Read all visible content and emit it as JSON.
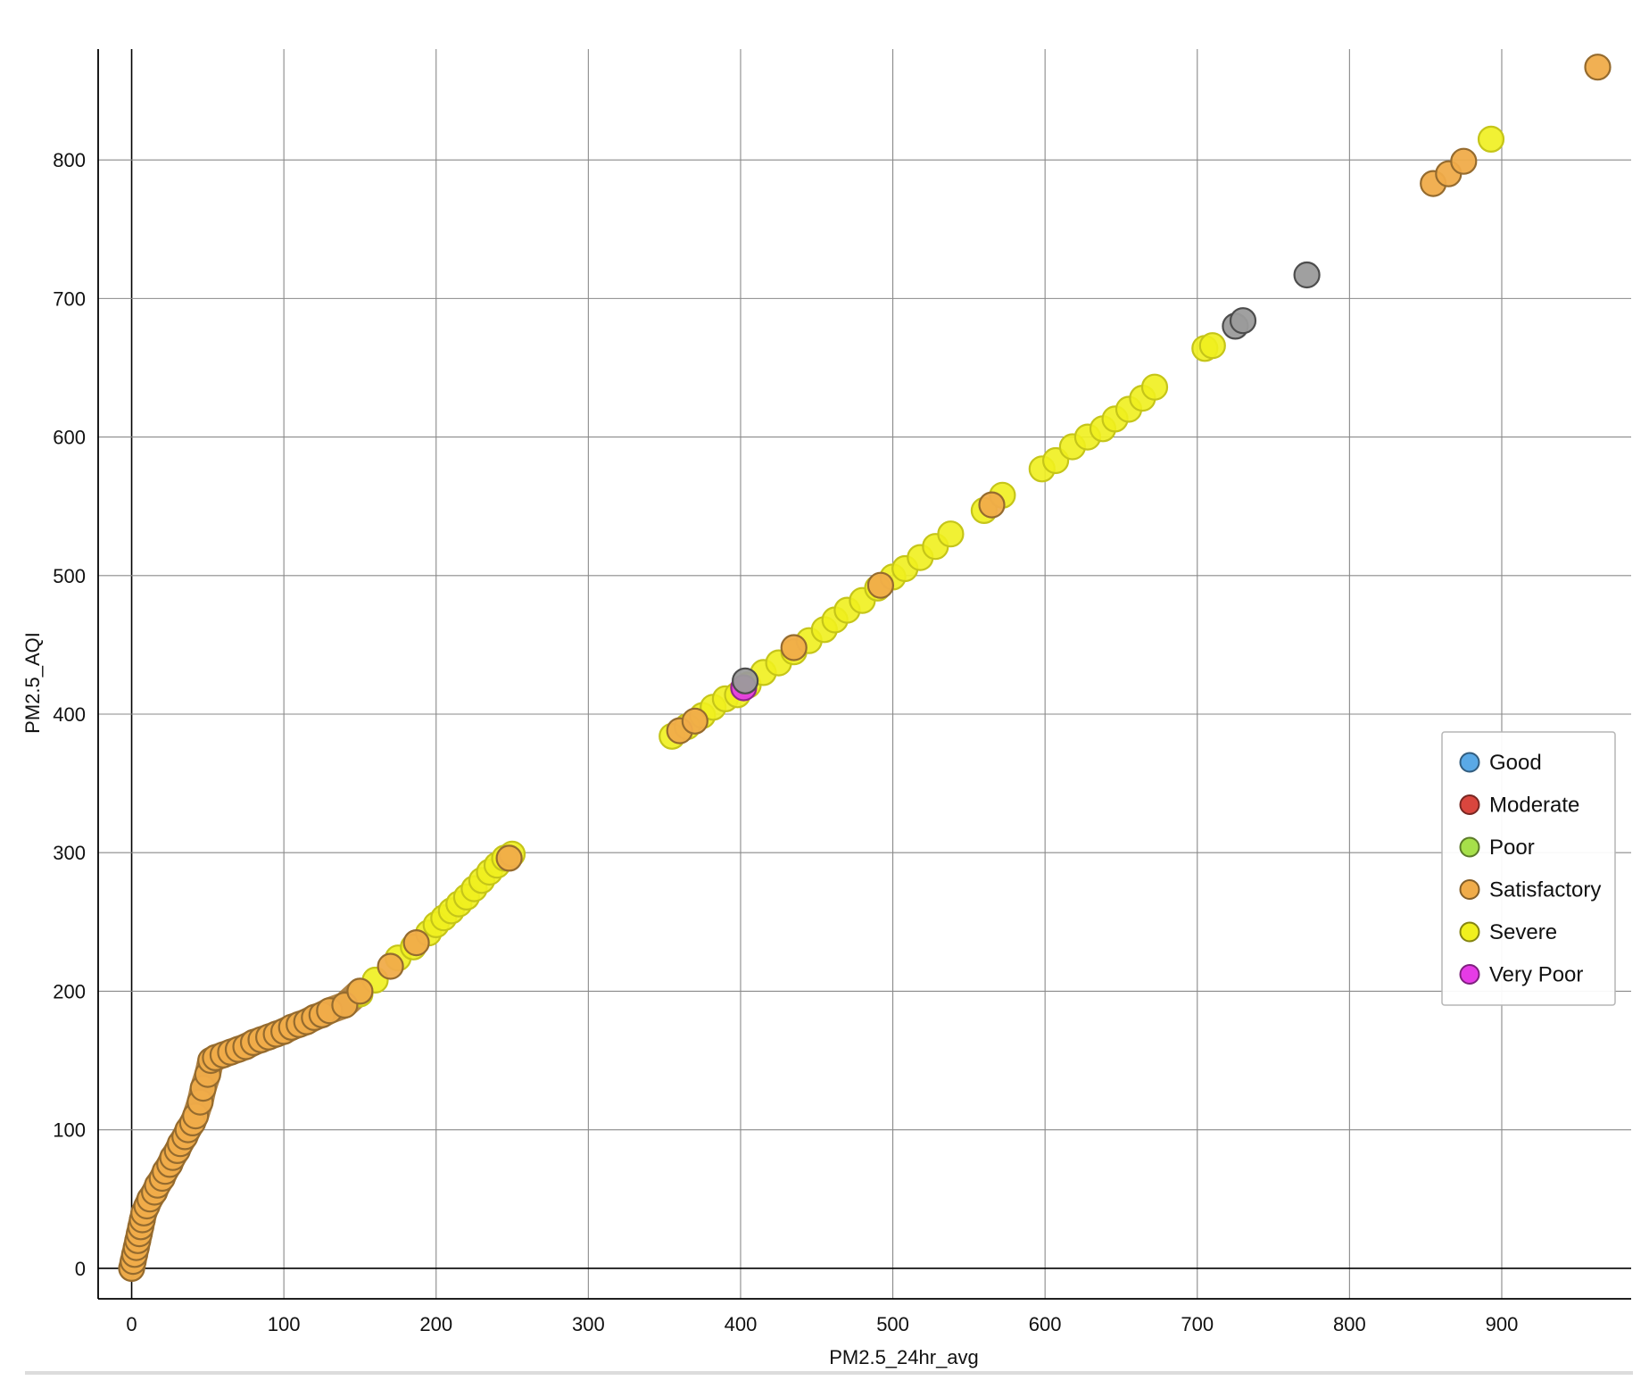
{
  "chart_data": {
    "type": "scatter",
    "xlabel": "PM2.5_24hr_avg",
    "ylabel": "PM2.5_AQI",
    "xlim": [
      -22,
      985
    ],
    "ylim": [
      -22,
      880
    ],
    "xticks": [
      0,
      100,
      200,
      300,
      400,
      500,
      600,
      700,
      800,
      900
    ],
    "yticks": [
      0,
      100,
      200,
      300,
      400,
      500,
      600,
      700,
      800
    ],
    "grid": true,
    "legend_position": "right",
    "legend": [
      {
        "name": "Good",
        "color": "#5aa9e6"
      },
      {
        "name": "Moderate",
        "color": "#d9463e"
      },
      {
        "name": "Poor",
        "color": "#a6e04a"
      },
      {
        "name": "Satisfactory",
        "color": "#f0ac4a"
      },
      {
        "name": "Severe",
        "color": "#f0f01e"
      },
      {
        "name": "Very Poor",
        "color": "#e63be6"
      }
    ],
    "other_color": "#9b9b9b",
    "series": [
      {
        "category": "Satisfactory",
        "points": [
          [
            0,
            0
          ],
          [
            1,
            5
          ],
          [
            2,
            10
          ],
          [
            3,
            15
          ],
          [
            4,
            20
          ],
          [
            5,
            25
          ],
          [
            6,
            30
          ],
          [
            7,
            35
          ],
          [
            8,
            40
          ],
          [
            10,
            45
          ],
          [
            12,
            50
          ],
          [
            15,
            55
          ],
          [
            17,
            60
          ],
          [
            20,
            65
          ],
          [
            22,
            70
          ],
          [
            25,
            75
          ],
          [
            27,
            80
          ],
          [
            30,
            85
          ],
          [
            32,
            90
          ],
          [
            35,
            95
          ],
          [
            37,
            100
          ],
          [
            40,
            105
          ],
          [
            42,
            110
          ],
          [
            45,
            120
          ],
          [
            47,
            130
          ],
          [
            50,
            140
          ],
          [
            52,
            150
          ],
          [
            55,
            152
          ],
          [
            60,
            154
          ],
          [
            65,
            156
          ],
          [
            70,
            158
          ],
          [
            75,
            160
          ],
          [
            80,
            163
          ],
          [
            85,
            165
          ],
          [
            90,
            167
          ],
          [
            95,
            169
          ],
          [
            100,
            171
          ],
          [
            105,
            174
          ],
          [
            110,
            176
          ],
          [
            115,
            178
          ],
          [
            120,
            181
          ],
          [
            125,
            183
          ],
          [
            130,
            186
          ],
          [
            140,
            190
          ],
          [
            150,
            200
          ],
          [
            170,
            218
          ],
          [
            187,
            235
          ],
          [
            248,
            296
          ],
          [
            360,
            388
          ],
          [
            370,
            395
          ],
          [
            435,
            448
          ],
          [
            492,
            493
          ],
          [
            565,
            551
          ],
          [
            855,
            783
          ],
          [
            865,
            790
          ],
          [
            875,
            799
          ],
          [
            963,
            867
          ]
        ]
      },
      {
        "category": "Severe",
        "points": [
          [
            150,
            198
          ],
          [
            160,
            208
          ],
          [
            175,
            224
          ],
          [
            185,
            232
          ],
          [
            195,
            242
          ],
          [
            200,
            248
          ],
          [
            205,
            253
          ],
          [
            210,
            258
          ],
          [
            215,
            263
          ],
          [
            220,
            268
          ],
          [
            225,
            274
          ],
          [
            230,
            280
          ],
          [
            235,
            286
          ],
          [
            240,
            291
          ],
          [
            245,
            296
          ],
          [
            250,
            299
          ],
          [
            355,
            384
          ],
          [
            365,
            391
          ],
          [
            375,
            399
          ],
          [
            382,
            405
          ],
          [
            390,
            411
          ],
          [
            398,
            414
          ],
          [
            405,
            421
          ],
          [
            415,
            430
          ],
          [
            425,
            437
          ],
          [
            435,
            445
          ],
          [
            445,
            453
          ],
          [
            455,
            461
          ],
          [
            462,
            468
          ],
          [
            470,
            475
          ],
          [
            480,
            482
          ],
          [
            490,
            491
          ],
          [
            500,
            499
          ],
          [
            508,
            505
          ],
          [
            518,
            513
          ],
          [
            528,
            521
          ],
          [
            538,
            530
          ],
          [
            560,
            547
          ],
          [
            572,
            558
          ],
          [
            598,
            577
          ],
          [
            607,
            583
          ],
          [
            618,
            593
          ],
          [
            628,
            600
          ],
          [
            638,
            606
          ],
          [
            646,
            613
          ],
          [
            655,
            620
          ],
          [
            664,
            628
          ],
          [
            672,
            636
          ],
          [
            705,
            664
          ],
          [
            710,
            666
          ],
          [
            893,
            815
          ]
        ]
      },
      {
        "category": "Very Poor",
        "points": [
          [
            402,
            419
          ]
        ]
      },
      {
        "category": "other",
        "points": [
          [
            403,
            424
          ],
          [
            725,
            680
          ],
          [
            730,
            684
          ],
          [
            772,
            717
          ]
        ]
      }
    ]
  }
}
